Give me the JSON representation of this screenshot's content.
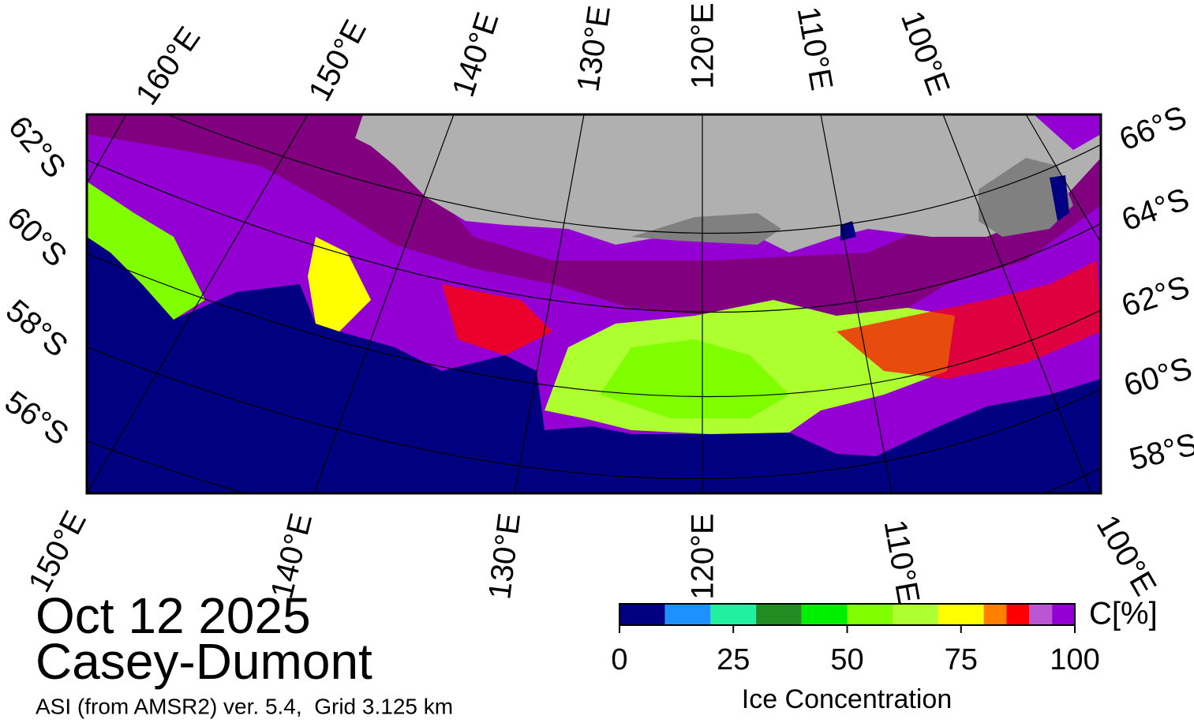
{
  "map": {
    "date": "Oct 12 2025",
    "region": "Casey-Dumont",
    "subtitle": "ASI (from AMSR2) ver. 5.4,  Grid 3.125 km",
    "labels_top": [
      "160°E",
      "150°E",
      "140°E",
      "130°E",
      "120°E",
      "110°E",
      "100°E"
    ],
    "labels_bottom": [
      "150°E",
      "140°E",
      "130°E",
      "120°E",
      "110°E",
      "100°E"
    ],
    "labels_left": [
      "62°S",
      "60°S",
      "58°S",
      "56°S"
    ],
    "labels_right": [
      "66°S",
      "64°S",
      "62°S",
      "60°S",
      "58°S"
    ]
  },
  "colorbar": {
    "title": "Ice Concentration",
    "unit": "C[%]",
    "ticks": [
      0,
      25,
      50,
      75,
      100
    ],
    "bounds": [
      0,
      10,
      20,
      30,
      40,
      50,
      60,
      70,
      80,
      85,
      90,
      95,
      100
    ],
    "colors": [
      "#000080",
      "#1e90ff",
      "#20f0a0",
      "#228b22",
      "#00ee00",
      "#7fff00",
      "#adff2f",
      "#ffff00",
      "#ff8000",
      "#ff0000",
      "#ba55d3",
      "#9400d3"
    ]
  }
}
